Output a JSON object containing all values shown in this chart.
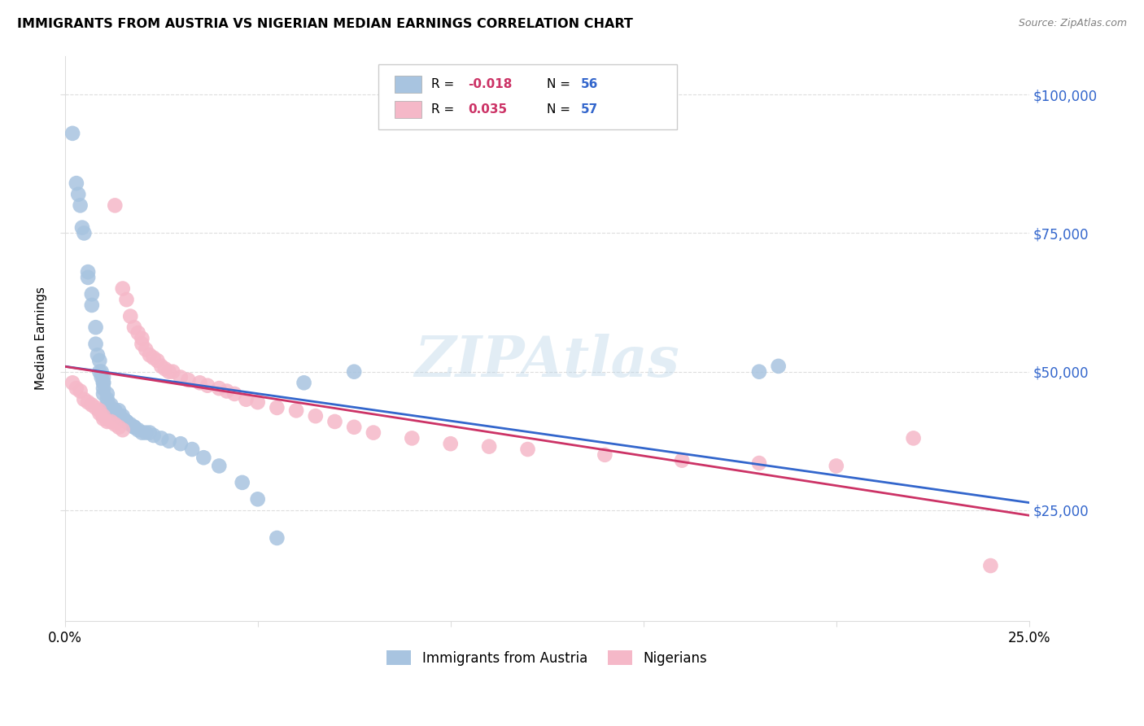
{
  "title": "IMMIGRANTS FROM AUSTRIA VS NIGERIAN MEDIAN EARNINGS CORRELATION CHART",
  "source": "Source: ZipAtlas.com",
  "ylabel": "Median Earnings",
  "yticks": [
    25000,
    50000,
    75000,
    100000
  ],
  "ytick_labels": [
    "$25,000",
    "$50,000",
    "$75,000",
    "$100,000"
  ],
  "xmin": 0.0,
  "xmax": 0.25,
  "ymin": 5000,
  "ymax": 107000,
  "legend_blue_r": "-0.018",
  "legend_blue_n": "56",
  "legend_pink_r": "0.035",
  "legend_pink_n": "57",
  "legend_label_blue": "Immigrants from Austria",
  "legend_label_pink": "Nigerians",
  "blue_scatter_color": "#a8c4e0",
  "pink_scatter_color": "#f5b8c8",
  "trendline_blue_color": "#3366cc",
  "trendline_pink_color": "#cc3366",
  "r_value_color": "#cc3366",
  "n_value_color": "#3366cc",
  "right_axis_color": "#3366cc",
  "watermark_color": "#b8d4e8",
  "watermark_text": "ZIPAtlas",
  "background_color": "#ffffff",
  "grid_color": "#dddddd",
  "austria_x": [
    0.002,
    0.003,
    0.0035,
    0.004,
    0.0045,
    0.005,
    0.006,
    0.006,
    0.007,
    0.007,
    0.008,
    0.008,
    0.0085,
    0.009,
    0.009,
    0.0095,
    0.0095,
    0.01,
    0.01,
    0.01,
    0.01,
    0.01,
    0.011,
    0.011,
    0.011,
    0.012,
    0.012,
    0.013,
    0.013,
    0.014,
    0.014,
    0.015,
    0.015,
    0.016,
    0.016,
    0.017,
    0.018,
    0.018,
    0.019,
    0.02,
    0.021,
    0.022,
    0.023,
    0.025,
    0.027,
    0.03,
    0.033,
    0.036,
    0.04,
    0.046,
    0.05,
    0.055,
    0.062,
    0.075,
    0.18,
    0.185
  ],
  "austria_y": [
    93000,
    84000,
    82000,
    80000,
    76000,
    75000,
    68000,
    67000,
    64000,
    62000,
    58000,
    55000,
    53000,
    52000,
    50000,
    50000,
    49000,
    49000,
    48000,
    48000,
    47000,
    46000,
    46000,
    45000,
    44000,
    44000,
    43500,
    43000,
    43000,
    43000,
    42000,
    42000,
    41500,
    41000,
    41000,
    40500,
    40000,
    40000,
    39500,
    39000,
    39000,
    39000,
    38500,
    38000,
    37500,
    37000,
    36000,
    34500,
    33000,
    30000,
    27000,
    20000,
    48000,
    50000,
    50000,
    51000
  ],
  "nigerian_x": [
    0.002,
    0.003,
    0.004,
    0.005,
    0.006,
    0.007,
    0.008,
    0.009,
    0.009,
    0.01,
    0.01,
    0.011,
    0.012,
    0.013,
    0.013,
    0.014,
    0.015,
    0.015,
    0.016,
    0.017,
    0.018,
    0.019,
    0.02,
    0.02,
    0.021,
    0.022,
    0.023,
    0.024,
    0.025,
    0.026,
    0.027,
    0.028,
    0.03,
    0.032,
    0.035,
    0.037,
    0.04,
    0.042,
    0.044,
    0.047,
    0.05,
    0.055,
    0.06,
    0.065,
    0.07,
    0.075,
    0.08,
    0.09,
    0.1,
    0.11,
    0.12,
    0.14,
    0.16,
    0.18,
    0.2,
    0.22,
    0.24
  ],
  "nigerian_y": [
    48000,
    47000,
    46500,
    45000,
    44500,
    44000,
    43500,
    43000,
    42500,
    42000,
    41500,
    41000,
    41000,
    40500,
    80000,
    40000,
    39500,
    65000,
    63000,
    60000,
    58000,
    57000,
    56000,
    55000,
    54000,
    53000,
    52500,
    52000,
    51000,
    50500,
    50000,
    50000,
    49000,
    48500,
    48000,
    47500,
    47000,
    46500,
    46000,
    45000,
    44500,
    43500,
    43000,
    42000,
    41000,
    40000,
    39000,
    38000,
    37000,
    36500,
    36000,
    35000,
    34000,
    33500,
    33000,
    38000,
    15000
  ]
}
